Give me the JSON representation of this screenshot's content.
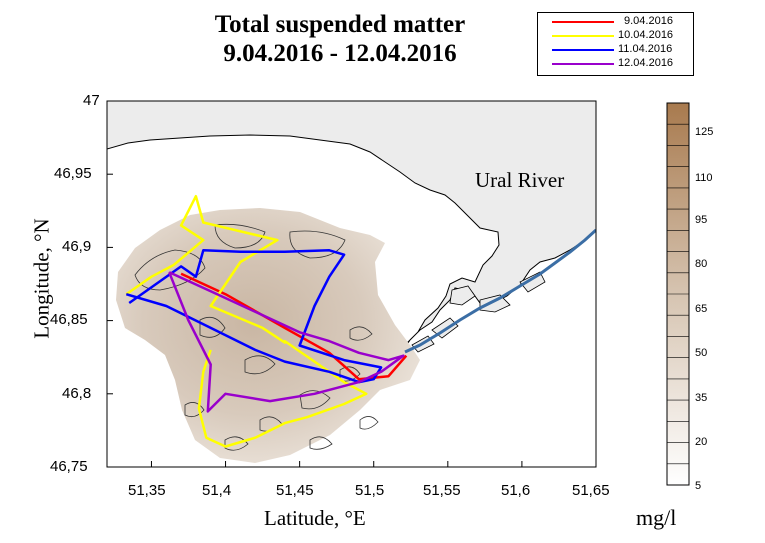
{
  "title_line1": "Total suspended matter",
  "title_line2": "9.04.2016 - 12.04.2016",
  "xlabel": "Latitude, °E",
  "ylabel": "Longitude, °N",
  "unit_label": "mg/l",
  "river_label": "Ural River",
  "legend": [
    {
      "label": "9.04.2016",
      "color": "#ff0000"
    },
    {
      "label": "10.04.2016",
      "color": "#ffff00"
    },
    {
      "label": "11.04.2016",
      "color": "#0000ff"
    },
    {
      "label": "12.04.2016",
      "color": "#9900cc"
    }
  ],
  "x_ticks": [
    "51,35",
    "51,4",
    "51,45",
    "51,5",
    "51,55",
    "51,6",
    "51,65"
  ],
  "y_ticks": [
    "47",
    "46,95",
    "46,9",
    "46,85",
    "46,8",
    "46,75"
  ],
  "colorbar_ticks": [
    "125",
    "110",
    "95",
    "80",
    "65",
    "50",
    "35",
    "20",
    "5"
  ],
  "colors": {
    "land": "#ececec",
    "river": "#3b6ea5",
    "colorbar_low": "#ffffff",
    "colorbar_high": "#a87a4e"
  },
  "chart_data": {
    "type": "map",
    "xlim": [
      51.32,
      51.65
    ],
    "ylim": [
      46.75,
      47.0
    ],
    "colorbar_range": [
      5,
      140
    ],
    "tracks": [
      {
        "date": "9.04.2016",
        "points": [
          [
            51.37,
            46.882
          ],
          [
            51.4,
            46.868
          ],
          [
            51.44,
            46.845
          ],
          [
            51.47,
            46.828
          ],
          [
            51.49,
            46.81
          ],
          [
            51.51,
            46.812
          ],
          [
            51.522,
            46.826
          ]
        ]
      },
      {
        "date": "10.04.2016",
        "points": [
          [
            51.333,
            46.868
          ],
          [
            51.35,
            46.88
          ],
          [
            51.365,
            46.888
          ],
          [
            51.385,
            46.905
          ],
          [
            51.37,
            46.915
          ],
          [
            51.38,
            46.935
          ],
          [
            51.385,
            46.917
          ],
          [
            51.435,
            46.905
          ],
          [
            51.41,
            46.89
          ],
          [
            51.39,
            46.86
          ],
          [
            51.425,
            46.845
          ],
          [
            51.44,
            46.835
          ],
          [
            51.44,
            46.836
          ],
          [
            51.46,
            46.822
          ],
          [
            51.48,
            46.808
          ],
          [
            51.495,
            46.8
          ],
          [
            51.48,
            46.793
          ],
          [
            51.455,
            46.784
          ],
          [
            51.44,
            46.78
          ],
          [
            51.42,
            46.77
          ],
          [
            51.4,
            46.764
          ],
          [
            51.387,
            46.77
          ],
          [
            51.382,
            46.79
          ],
          [
            51.385,
            46.815
          ],
          [
            51.39,
            46.83
          ]
        ]
      },
      {
        "date": "11.04.2016",
        "points": [
          [
            51.333,
            46.868
          ],
          [
            51.36,
            46.86
          ],
          [
            51.39,
            46.845
          ],
          [
            51.42,
            46.83
          ],
          [
            51.44,
            46.822
          ],
          [
            51.47,
            46.815
          ],
          [
            51.49,
            46.808
          ],
          [
            51.5,
            46.81
          ],
          [
            51.505,
            46.818
          ],
          [
            51.48,
            46.823
          ],
          [
            51.45,
            46.833
          ],
          [
            51.46,
            46.86
          ],
          [
            51.47,
            46.88
          ],
          [
            51.48,
            46.895
          ],
          [
            51.47,
            46.898
          ],
          [
            51.44,
            46.897
          ],
          [
            51.41,
            46.897
          ],
          [
            51.385,
            46.898
          ],
          [
            51.38,
            46.88
          ],
          [
            51.37,
            46.887
          ],
          [
            51.335,
            46.862
          ]
        ]
      },
      {
        "date": "12.04.2016",
        "points": [
          [
            51.362,
            46.883
          ],
          [
            51.39,
            46.87
          ],
          [
            51.42,
            46.856
          ],
          [
            51.45,
            46.842
          ],
          [
            51.47,
            46.836
          ],
          [
            51.49,
            46.828
          ],
          [
            51.51,
            46.823
          ],
          [
            51.52,
            46.826
          ],
          [
            51.505,
            46.815
          ],
          [
            51.49,
            46.808
          ],
          [
            51.46,
            46.8
          ],
          [
            51.43,
            46.795
          ],
          [
            51.4,
            46.8
          ],
          [
            51.388,
            46.788
          ],
          [
            51.39,
            46.82
          ],
          [
            51.375,
            46.85
          ],
          [
            51.362,
            46.883
          ]
        ]
      }
    ]
  }
}
